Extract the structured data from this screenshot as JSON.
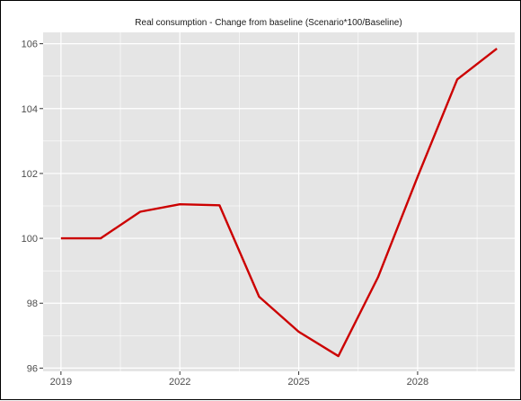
{
  "chart_data": {
    "type": "line",
    "title": "Real consumption - Change from baseline (Scenario*100/Baseline)",
    "xlabel": "",
    "ylabel": "",
    "x": [
      2019,
      2020,
      2021,
      2022,
      2023,
      2024,
      2025,
      2026,
      2027,
      2028,
      2029,
      2030
    ],
    "series": [
      {
        "values": [
          100.0,
          100.0,
          100.82,
          101.05,
          101.02,
          98.2,
          97.12,
          96.37,
          98.8,
          101.9,
          104.9,
          105.85
        ],
        "color": "#cc0000"
      }
    ],
    "xlim": [
      2018.55,
      2030.45
    ],
    "ylim": [
      95.9,
      106.35
    ],
    "x_ticks": [
      2019,
      2022,
      2025,
      2028
    ],
    "y_ticks": [
      96,
      98,
      100,
      102,
      104,
      106
    ],
    "grid": true,
    "panel_background": "#e5e5e5",
    "grid_color": "#ffffff"
  }
}
